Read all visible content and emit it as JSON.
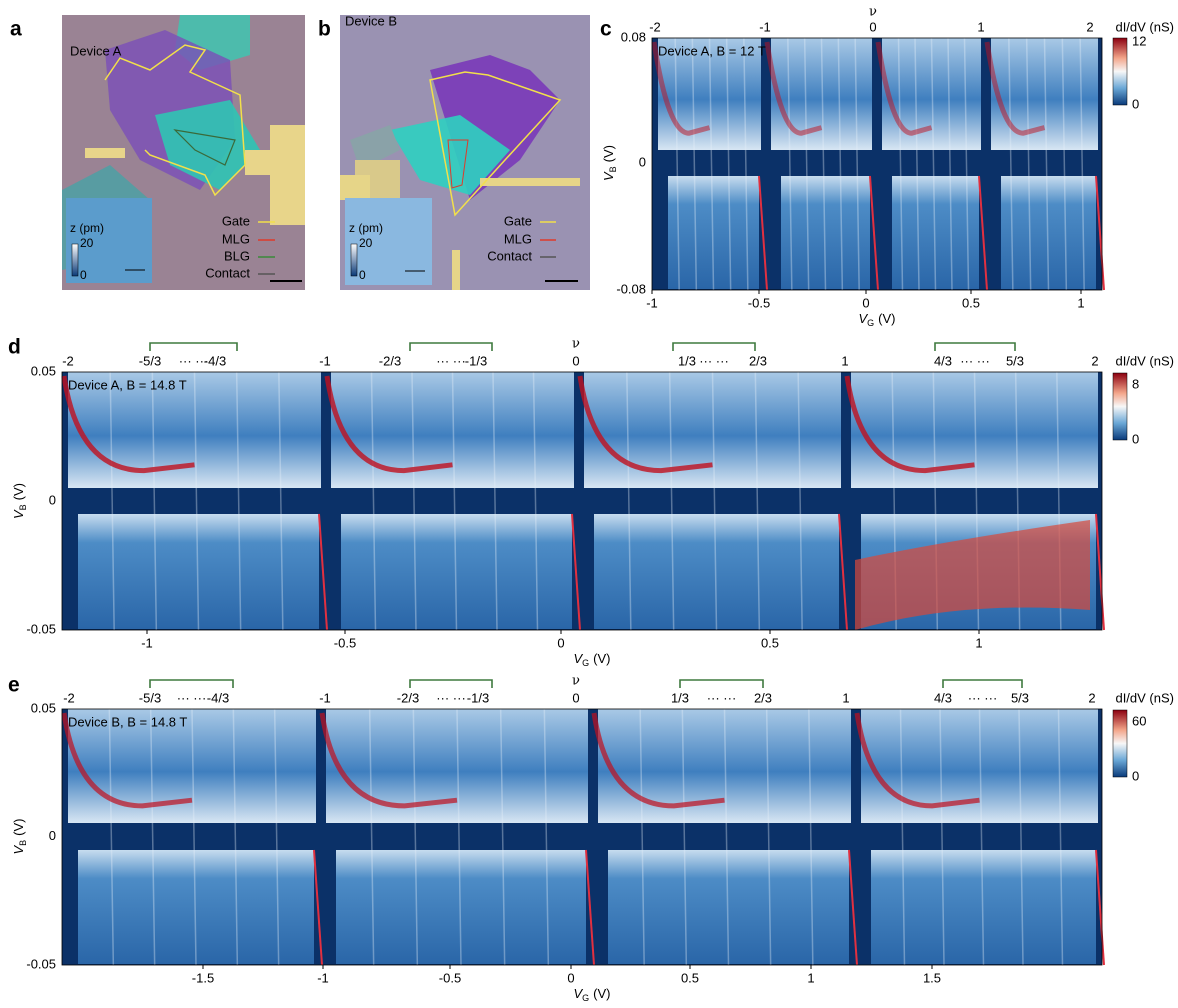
{
  "panels": {
    "a": {
      "label": "a",
      "device": "Device A",
      "legend": [
        "Gate",
        "MLG",
        "BLG",
        "Contact"
      ],
      "inset": {
        "axis": "z (pm)",
        "ticks": [
          "20",
          "0"
        ]
      }
    },
    "b": {
      "label": "b",
      "device": "Device B",
      "legend": [
        "Gate",
        "MLG",
        "Contact"
      ],
      "inset": {
        "axis": "z (pm)",
        "ticks": [
          "20",
          "0"
        ]
      }
    },
    "c": {
      "label": "c",
      "annotation": "Device A, B = 12 T",
      "nu_label": "ν",
      "nu_ticks": [
        "-2",
        "-1",
        "0",
        "1",
        "2"
      ],
      "colorbar_label": "dI/dV (nS)",
      "colorbar_ticks": [
        "12",
        "0"
      ],
      "y_ticks": [
        "0.08",
        "0",
        "-0.08"
      ],
      "x_ticks": [
        "-1",
        "-0.5",
        "0",
        "0.5",
        "1"
      ],
      "x_label": {
        "symbol": "V",
        "subscript": "G",
        "unit": "(V)"
      },
      "y_label": {
        "symbol": "V",
        "subscript": "B",
        "unit": "(V)"
      }
    },
    "d": {
      "label": "d",
      "annotation": "Device A, B = 14.8 T",
      "nu_label": "ν",
      "nu_ticks": [
        "-2",
        "-5/3",
        "-4/3",
        "-1",
        "-2/3",
        "-1/3",
        "0",
        "1/3",
        "2/3",
        "1",
        "4/3",
        "5/3",
        "2"
      ],
      "bracket_dots": "··· ···",
      "colorbar_label": "dI/dV (nS)",
      "colorbar_ticks": [
        "8",
        "0"
      ],
      "y_ticks": [
        "0.05",
        "0",
        "-0.05"
      ],
      "x_ticks": [
        "-1",
        "-0.5",
        "0",
        "0.5",
        "1"
      ],
      "x_label": {
        "symbol": "V",
        "subscript": "G",
        "unit": "(V)"
      },
      "y_label": {
        "symbol": "V",
        "subscript": "B",
        "unit": "(V)"
      }
    },
    "e": {
      "label": "e",
      "annotation": "Device B, B = 14.8 T",
      "nu_label": "ν",
      "nu_ticks": [
        "-2",
        "-5/3",
        "-4/3",
        "-1",
        "-2/3",
        "-1/3",
        "0",
        "1/3",
        "2/3",
        "1",
        "4/3",
        "5/3",
        "2"
      ],
      "bracket_dots": "··· ···",
      "colorbar_label": "dI/dV (nS)",
      "colorbar_ticks": [
        "60",
        "0"
      ],
      "y_ticks": [
        "0.05",
        "0",
        "-0.05"
      ],
      "x_ticks": [
        "-1.5",
        "-1",
        "-0.5",
        "0",
        "0.5",
        "1",
        "1.5"
      ],
      "x_label": {
        "symbol": "V",
        "subscript": "G",
        "unit": "(V)"
      },
      "y_label": {
        "symbol": "V",
        "subscript": "B",
        "unit": "(V)"
      }
    }
  }
}
